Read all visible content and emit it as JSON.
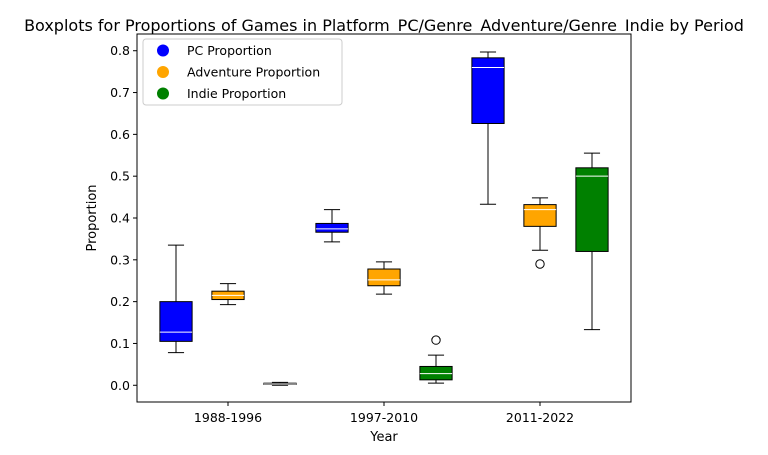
{
  "chart_data": {
    "type": "boxplot",
    "title": "Boxplots for Proportions of Games in Platform_PC/Genre_Adventure/Genre_Indie by Period",
    "xlabel": "Year",
    "ylabel": "Proportion",
    "ylim": [
      -0.04,
      0.84
    ],
    "yticks": [
      0.0,
      0.1,
      0.2,
      0.3,
      0.4,
      0.5,
      0.6,
      0.7,
      0.8
    ],
    "ytick_labels": [
      "0.0",
      "0.1",
      "0.2",
      "0.3",
      "0.4",
      "0.5",
      "0.6",
      "0.7",
      "0.8"
    ],
    "categories": [
      "1988-1996",
      "1997-2010",
      "2011-2022"
    ],
    "legend_position": "top-left",
    "series": [
      {
        "name": "PC Proportion",
        "color": "#0000ff",
        "boxes": [
          {
            "whisker_low": 0.078,
            "q1": 0.105,
            "median": 0.127,
            "q3": 0.2,
            "whisker_high": 0.335,
            "outliers": []
          },
          {
            "whisker_low": 0.343,
            "q1": 0.366,
            "median": 0.374,
            "q3": 0.387,
            "whisker_high": 0.42,
            "outliers": []
          },
          {
            "whisker_low": 0.433,
            "q1": 0.626,
            "median": 0.76,
            "q3": 0.783,
            "whisker_high": 0.797,
            "outliers": []
          }
        ]
      },
      {
        "name": "Adventure Proportion",
        "color": "#ffa500",
        "boxes": [
          {
            "whisker_low": 0.193,
            "q1": 0.205,
            "median": 0.215,
            "q3": 0.225,
            "whisker_high": 0.243,
            "outliers": []
          },
          {
            "whisker_low": 0.218,
            "q1": 0.238,
            "median": 0.252,
            "q3": 0.278,
            "whisker_high": 0.295,
            "outliers": []
          },
          {
            "whisker_low": 0.323,
            "q1": 0.38,
            "median": 0.42,
            "q3": 0.432,
            "whisker_high": 0.448,
            "outliers": [
              0.29
            ]
          }
        ]
      },
      {
        "name": "Indie Proportion",
        "color": "#008000",
        "boxes": [
          {
            "whisker_low": 0.0,
            "q1": 0.002,
            "median": 0.003,
            "q3": 0.005,
            "whisker_high": 0.007,
            "outliers": []
          },
          {
            "whisker_low": 0.005,
            "q1": 0.013,
            "median": 0.028,
            "q3": 0.045,
            "whisker_high": 0.072,
            "outliers": [
              0.108
            ]
          },
          {
            "whisker_low": 0.133,
            "q1": 0.32,
            "median": 0.5,
            "q3": 0.52,
            "whisker_high": 0.555,
            "outliers": []
          }
        ]
      }
    ]
  }
}
